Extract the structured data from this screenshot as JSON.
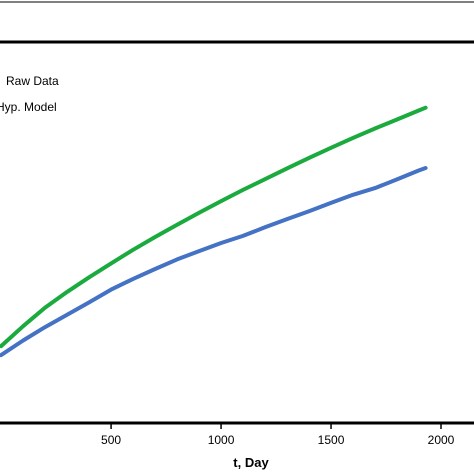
{
  "chart_data": {
    "type": "line",
    "xlabel": "t, Day",
    "ylabel": "",
    "title": "",
    "xlim": [
      -5,
      2150
    ],
    "x_ticks": [
      500,
      1000,
      1500,
      2000
    ],
    "x_tick_labels": [
      "500",
      "1000",
      "1500",
      "2000"
    ],
    "grid": false,
    "legend": "top-left",
    "series": [
      {
        "name": "Raw Data",
        "color": "#4472c4",
        "x": [
          0,
          100,
          200,
          300,
          400,
          500,
          600,
          700,
          800,
          900,
          1000,
          1100,
          1200,
          1300,
          1400,
          1500,
          1600,
          1700,
          1800,
          1900,
          1930
        ],
        "y": [
          30.3,
          36.8,
          42.8,
          48.3,
          53.8,
          59.5,
          64.3,
          68.7,
          73.0,
          76.7,
          80.3,
          83.5,
          87.3,
          91.0,
          94.5,
          98.2,
          101.8,
          104.8,
          108.7,
          112.7,
          113.8
        ]
      },
      {
        "name": "Hyp. Model",
        "color": "#1aaa3e",
        "x": [
          0,
          100,
          200,
          300,
          400,
          500,
          600,
          700,
          800,
          900,
          1000,
          1100,
          1200,
          1300,
          1400,
          1500,
          1600,
          1700,
          1800,
          1900,
          1930
        ],
        "y": [
          34.3,
          43.2,
          51.5,
          58.5,
          65.0,
          71.2,
          77.3,
          83.0,
          88.5,
          93.8,
          99.0,
          104.0,
          108.8,
          113.6,
          118.3,
          122.8,
          127.2,
          131.4,
          135.4,
          139.5,
          140.7
        ]
      }
    ]
  }
}
